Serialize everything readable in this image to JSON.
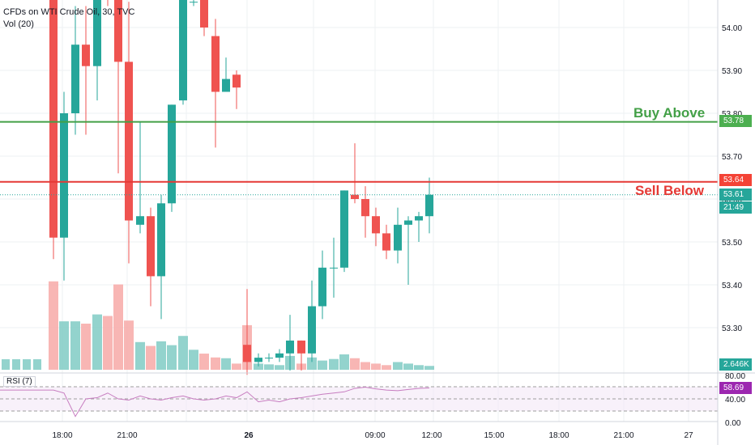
{
  "header": {
    "symbol_title": "CFDs on WTI Crude Oil, 30, TVC",
    "volume_label": "Vol (20)",
    "rsi_label": "RSI (7)"
  },
  "annotations": {
    "buy_label": "Buy Above",
    "sell_label": "Sell Below"
  },
  "price_tags": {
    "buy": "53.78",
    "sell": "53.64",
    "last": "53.61",
    "countdown": "21:49",
    "volume": "2.646K",
    "rsi": "58.69"
  },
  "colors": {
    "up": "#26a69a",
    "down": "#ef5350",
    "buy_line": "#43a047",
    "sell_line": "#e53935",
    "rsi_line": "#c77dc0"
  },
  "chart_data": {
    "type": "candlestick",
    "interval": "30",
    "price_axis": {
      "ticks": [
        "54.00",
        "53.90",
        "53.80",
        "53.70",
        "53.60",
        "53.50",
        "53.40",
        "53.30"
      ],
      "range": [
        53.2,
        54.06
      ]
    },
    "time_axis": [
      "18:00",
      "21:00",
      "26",
      "09:00",
      "12:00",
      "15:00",
      "18:00",
      "21:00",
      "27"
    ],
    "levels": [
      {
        "name": "Buy Above",
        "price": 53.78
      },
      {
        "name": "Sell Below",
        "price": 53.64
      },
      {
        "name": "Last",
        "price": 53.61
      }
    ],
    "candles": [
      {
        "time": "17:00",
        "o": 54.15,
        "h": 54.2,
        "l": 53.46,
        "c": 53.51,
        "v": 1.15
      },
      {
        "time": "17:30",
        "o": 53.51,
        "h": 53.85,
        "l": 53.41,
        "c": 53.8,
        "v": 0.63
      },
      {
        "time": "18:00",
        "o": 53.8,
        "h": 54.05,
        "l": 53.75,
        "c": 53.96,
        "v": 0.63
      },
      {
        "time": "18:30",
        "o": 53.96,
        "h": 54.05,
        "l": 53.75,
        "c": 53.91,
        "v": 0.6
      },
      {
        "time": "19:00",
        "o": 53.91,
        "h": 54.1,
        "l": 53.83,
        "c": 54.1,
        "v": 0.72
      },
      {
        "time": "19:30",
        "o": 54.1,
        "h": 54.15,
        "l": 54.05,
        "c": 54.08,
        "v": 0.7
      },
      {
        "time": "20:00",
        "o": 54.08,
        "h": 54.1,
        "l": 53.66,
        "c": 53.92,
        "v": 1.11
      },
      {
        "time": "20:30",
        "o": 53.92,
        "h": 54.06,
        "l": 53.45,
        "c": 53.55,
        "v": 0.64
      },
      {
        "time": "21:00",
        "o": 53.54,
        "h": 53.78,
        "l": 53.52,
        "c": 53.56,
        "v": 0.36
      },
      {
        "time": "21:30",
        "o": 53.56,
        "h": 53.58,
        "l": 53.35,
        "c": 53.42,
        "v": 0.31
      },
      {
        "time": "22:00",
        "o": 53.42,
        "h": 53.61,
        "l": 53.32,
        "c": 53.59,
        "v": 0.37
      },
      {
        "time": "22:30",
        "o": 53.59,
        "h": 53.82,
        "l": 53.57,
        "c": 53.82,
        "v": 0.32
      },
      {
        "time": "23:00",
        "o": 53.83,
        "h": 54.18,
        "l": 53.82,
        "c": 54.12,
        "v": 0.44
      },
      {
        "time": "23:30",
        "o": 54.06,
        "h": 54.2,
        "l": 54.05,
        "c": 54.06,
        "v": 0.26
      },
      {
        "time": "00:00",
        "o": 54.2,
        "h": 54.21,
        "l": 53.98,
        "c": 54.0,
        "v": 0.21
      },
      {
        "time": "00:30",
        "o": 53.98,
        "h": 54.02,
        "l": 53.72,
        "c": 53.85,
        "v": 0.16
      },
      {
        "time": "01:00",
        "o": 53.85,
        "h": 53.93,
        "l": 53.85,
        "c": 53.88,
        "v": 0.15
      },
      {
        "time": "01:30",
        "o": 53.89,
        "h": 53.9,
        "l": 53.81,
        "c": 53.86,
        "v": 0.08
      },
      {
        "time": "05:00",
        "o": 53.26,
        "h": 53.39,
        "l": 53.19,
        "c": 53.22,
        "v": 0.58
      },
      {
        "time": "05:30",
        "o": 53.22,
        "h": 53.24,
        "l": 53.21,
        "c": 53.23,
        "v": 0.08
      },
      {
        "time": "06:00",
        "o": 53.23,
        "h": 53.24,
        "l": 53.22,
        "c": 53.23,
        "v": 0.07
      },
      {
        "time": "06:30",
        "o": 53.23,
        "h": 53.25,
        "l": 53.22,
        "c": 53.24,
        "v": 0.06
      },
      {
        "time": "07:00",
        "o": 53.24,
        "h": 53.33,
        "l": 53.2,
        "c": 53.27,
        "v": 0.18
      },
      {
        "time": "07:30",
        "o": 53.27,
        "h": 53.27,
        "l": 53.2,
        "c": 53.24,
        "v": 0.08
      },
      {
        "time": "08:00",
        "o": 53.24,
        "h": 53.41,
        "l": 53.22,
        "c": 53.35,
        "v": 0.16
      },
      {
        "time": "08:30",
        "o": 53.35,
        "h": 53.48,
        "l": 53.32,
        "c": 53.44,
        "v": 0.12
      },
      {
        "time": "09:00",
        "o": 53.44,
        "h": 53.51,
        "l": 53.37,
        "c": 53.44,
        "v": 0.14
      },
      {
        "time": "09:30",
        "o": 53.44,
        "h": 53.62,
        "l": 53.43,
        "c": 53.62,
        "v": 0.2
      },
      {
        "time": "10:00",
        "o": 53.61,
        "h": 53.73,
        "l": 53.59,
        "c": 53.6,
        "v": 0.15
      },
      {
        "time": "10:30",
        "o": 53.6,
        "h": 53.63,
        "l": 53.51,
        "c": 53.56,
        "v": 0.1
      },
      {
        "time": "11:00",
        "o": 53.56,
        "h": 53.58,
        "l": 53.49,
        "c": 53.52,
        "v": 0.08
      },
      {
        "time": "11:30",
        "o": 53.52,
        "h": 53.54,
        "l": 53.46,
        "c": 53.48,
        "v": 0.06
      },
      {
        "time": "12:00",
        "o": 53.48,
        "h": 53.58,
        "l": 53.45,
        "c": 53.54,
        "v": 0.1
      },
      {
        "time": "12:30",
        "o": 53.54,
        "h": 53.56,
        "l": 53.4,
        "c": 53.55,
        "v": 0.08
      },
      {
        "time": "13:00",
        "o": 53.55,
        "h": 53.57,
        "l": 53.5,
        "c": 53.56,
        "v": 0.06
      },
      {
        "time": "13:30",
        "o": 53.56,
        "h": 53.65,
        "l": 53.52,
        "c": 53.61,
        "v": 0.05
      }
    ],
    "rsi": {
      "levels": [
        "80.00",
        "40.00",
        "0.00"
      ],
      "values": [
        55,
        50,
        10,
        40,
        42,
        50,
        40,
        38,
        45,
        40,
        38,
        42,
        45,
        40,
        38,
        40,
        45,
        42,
        52,
        35,
        38,
        35,
        40,
        42,
        45,
        48,
        50,
        52,
        58,
        60,
        57,
        55,
        54,
        56,
        58,
        58.69
      ]
    }
  }
}
